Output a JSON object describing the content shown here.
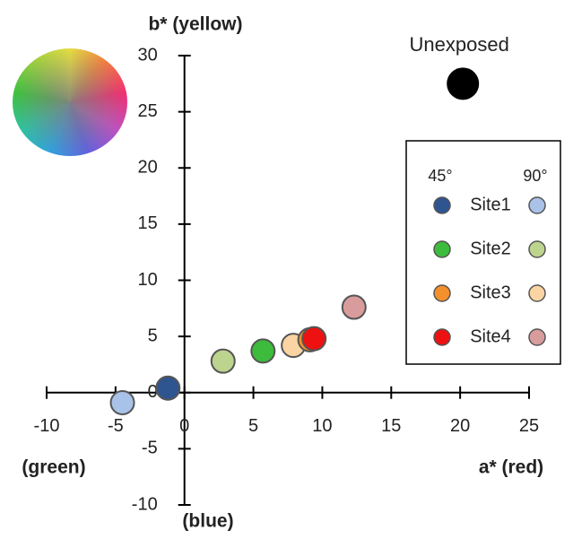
{
  "chart_data": {
    "type": "scatter",
    "x_label": "a* (red)",
    "x_label_neg": "(green)",
    "y_label": "b* (yellow)",
    "y_label_neg": "(blue)",
    "xlim": [
      -10,
      25
    ],
    "ylim": [
      -10,
      30
    ],
    "xticks": [
      -10,
      -5,
      0,
      5,
      10,
      15,
      20,
      25
    ],
    "yticks": [
      -10,
      -5,
      0,
      5,
      10,
      15,
      20,
      25,
      30
    ],
    "legend_columns": [
      "45°",
      "90°"
    ],
    "series": [
      {
        "name": "Site1",
        "points": [
          {
            "x": -1.2,
            "y": 0.4,
            "color": "#2f5590"
          },
          {
            "x": -4.5,
            "y": -0.9,
            "color": "#a9c2e8"
          }
        ]
      },
      {
        "name": "Site2",
        "points": [
          {
            "x": 5.7,
            "y": 3.7,
            "color": "#3cbb3c"
          },
          {
            "x": 2.8,
            "y": 2.8,
            "color": "#bcd48e"
          }
        ]
      },
      {
        "name": "Site3",
        "points": [
          {
            "x": 9.1,
            "y": 4.7,
            "color": "#f4902c"
          },
          {
            "x": 7.9,
            "y": 4.2,
            "color": "#fbd4a4"
          }
        ]
      },
      {
        "name": "Site4",
        "points": [
          {
            "x": 9.4,
            "y": 4.8,
            "color": "#ee1111"
          },
          {
            "x": 12.3,
            "y": 7.6,
            "color": "#d89c9c"
          }
        ]
      }
    ],
    "reference": {
      "label": "Unexposed",
      "x": 20.2,
      "y": 27.5,
      "color": "#000000"
    }
  }
}
